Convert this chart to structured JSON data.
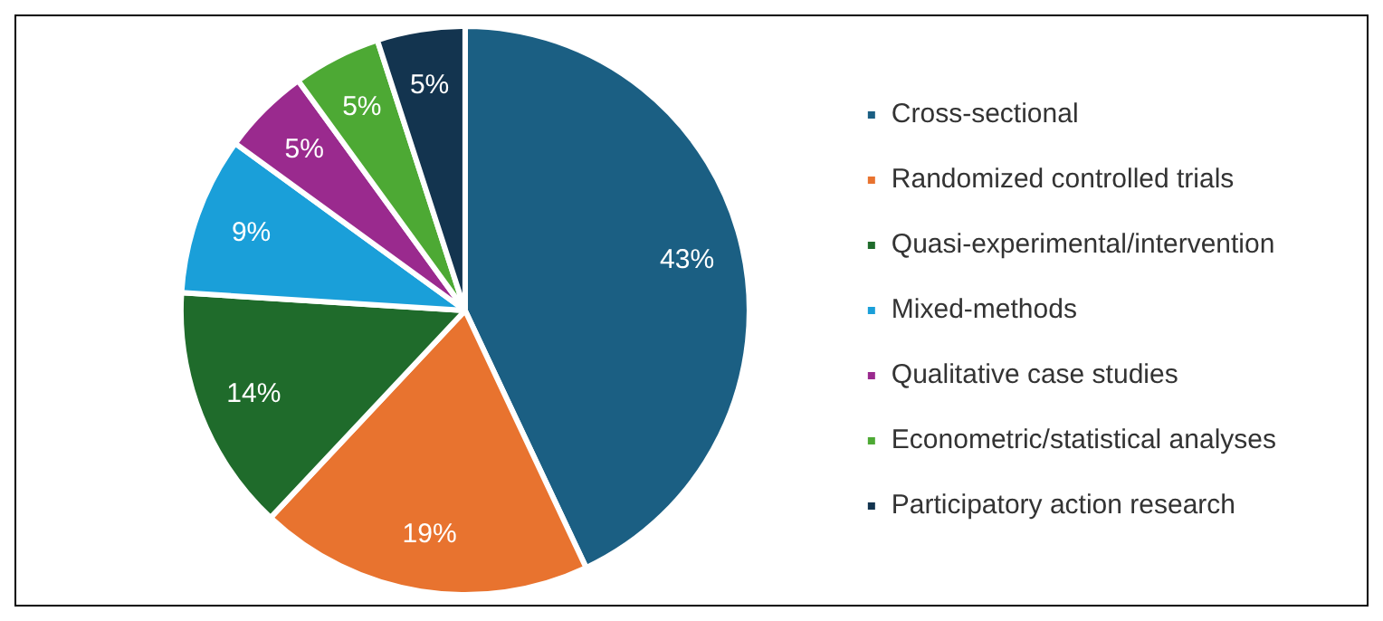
{
  "chart_data": {
    "type": "pie",
    "categories": [
      "Cross-sectional",
      "Randomized controlled trials",
      "Quasi-experimental/intervention",
      "Mixed-methods",
      "Qualitative case studies",
      "Econometric/statistical analyses",
      "Participatory action research"
    ],
    "values": [
      43,
      19,
      14,
      9,
      5,
      5,
      5
    ],
    "colors": [
      "#1b5f83",
      "#e8732f",
      "#1f6b2b",
      "#1a9fd9",
      "#9a2a8e",
      "#4da934",
      "#13344f"
    ],
    "value_labels": [
      "43%",
      "19%",
      "14%",
      "9%",
      "5%",
      "5%",
      "5%"
    ],
    "legend": "right"
  }
}
